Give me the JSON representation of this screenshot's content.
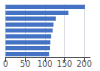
{
  "chart_data": {
    "type": "bar",
    "orientation": "horizontal",
    "categories": [
      null,
      null,
      null,
      null,
      null,
      null,
      null,
      null,
      null
    ],
    "values": [
      202,
      160,
      128,
      122,
      120,
      116,
      114,
      113,
      111
    ],
    "color": "#4472c4",
    "xlim": [
      0,
      215
    ],
    "xticks": [
      0,
      50,
      100,
      150,
      200
    ],
    "grid": true,
    "tick_labels": "x"
  }
}
